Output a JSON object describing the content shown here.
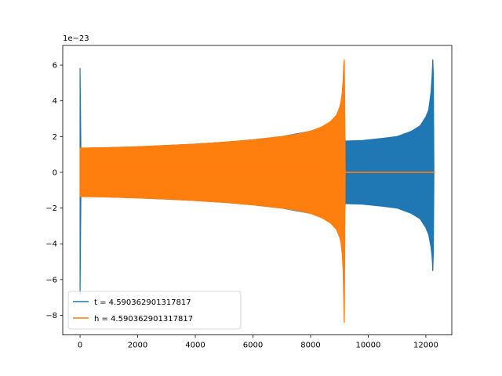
{
  "chart_data": {
    "type": "line",
    "title": "",
    "xlabel": "",
    "ylabel": "",
    "y_offset_text": "1e−23",
    "xlim": [
      -600,
      12900
    ],
    "ylim": [
      -9.1,
      7.1
    ],
    "x_ticks": [
      0,
      2000,
      4000,
      6000,
      8000,
      10000,
      12000
    ],
    "x_tick_labels": [
      "0",
      "2000",
      "4000",
      "6000",
      "8000",
      "10000",
      "12000"
    ],
    "y_ticks": [
      -8,
      -6,
      -4,
      -2,
      0,
      2,
      4,
      6
    ],
    "y_tick_labels": [
      "−8",
      "−6",
      "−4",
      "−2",
      "0",
      "2",
      "4",
      "6"
    ],
    "grid": false,
    "legend_position": "lower-left",
    "series": [
      {
        "name": "t = 4.590362901317817",
        "color": "#1f77b4",
        "envelope": {
          "x": [
            0,
            30,
            60,
            400,
            1000,
            2000,
            3000,
            4000,
            5000,
            6000,
            7000,
            8000,
            8600,
            9000,
            9150,
            9200,
            9800,
            10500,
            11000,
            11500,
            11800,
            12000,
            12100,
            12180,
            12220,
            12240,
            12260,
            12280,
            12300
          ],
          "upper": [
            5.8,
            1.3,
            1.3,
            1.36,
            1.38,
            1.43,
            1.5,
            1.58,
            1.68,
            1.82,
            2.0,
            2.3,
            2.6,
            3.0,
            3.3,
            1.75,
            1.78,
            1.9,
            2.0,
            2.3,
            2.6,
            3.1,
            3.5,
            4.5,
            5.5,
            6.3,
            5.5,
            0.0,
            0.0
          ],
          "lower": [
            -6.8,
            -1.3,
            -1.3,
            -1.36,
            -1.38,
            -1.43,
            -1.5,
            -1.58,
            -1.68,
            -1.82,
            -2.0,
            -2.3,
            -2.6,
            -3.0,
            -3.3,
            -1.75,
            -1.78,
            -1.9,
            -2.0,
            -2.3,
            -2.6,
            -3.1,
            -3.5,
            -4.2,
            -4.8,
            -5.5,
            -4.5,
            0.0,
            0.0
          ]
        }
      },
      {
        "name": "h = 4.590362901317817",
        "color": "#ff7f0e",
        "envelope": {
          "x": [
            0,
            50,
            1000,
            2000,
            3000,
            4000,
            5000,
            6000,
            7000,
            7500,
            8000,
            8400,
            8700,
            8900,
            9000,
            9050,
            9100,
            9130,
            9150,
            9170,
            9190,
            9200,
            12300
          ],
          "upper": [
            1.35,
            1.36,
            1.38,
            1.43,
            1.5,
            1.58,
            1.68,
            1.82,
            2.0,
            2.12,
            2.3,
            2.55,
            2.85,
            3.2,
            3.6,
            3.9,
            4.5,
            5.2,
            6.0,
            6.3,
            3.0,
            0.0,
            0.0
          ],
          "lower": [
            -1.35,
            -1.36,
            -1.38,
            -1.43,
            -1.5,
            -1.58,
            -1.68,
            -1.82,
            -2.0,
            -2.12,
            -2.3,
            -2.55,
            -2.85,
            -3.2,
            -3.6,
            -3.9,
            -4.6,
            -5.5,
            -7.0,
            -8.4,
            -3.0,
            0.0,
            0.0
          ]
        }
      }
    ]
  }
}
